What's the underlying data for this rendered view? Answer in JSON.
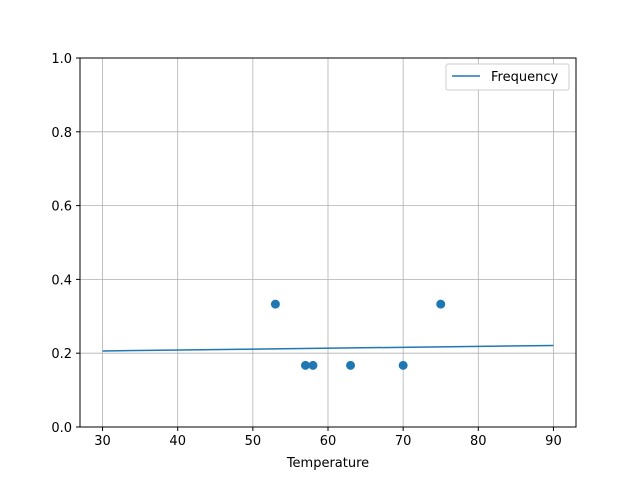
{
  "chart_data": {
    "type": "scatter",
    "title": "",
    "xlabel": "Temperature",
    "ylabel": "",
    "xlim": [
      27,
      93
    ],
    "ylim": [
      0,
      1.0
    ],
    "grid": true,
    "x_ticks": [
      30,
      40,
      50,
      60,
      70,
      80,
      90
    ],
    "y_ticks": [
      0.0,
      0.2,
      0.4,
      0.6,
      0.8,
      1.0
    ],
    "x_tick_labels": [
      "30",
      "40",
      "50",
      "60",
      "70",
      "80",
      "90"
    ],
    "y_tick_labels": [
      "0.0",
      "0.2",
      "0.4",
      "0.6",
      "0.8",
      "1.0"
    ],
    "legend_position": "upper-right",
    "color": "#1f77b4",
    "points": {
      "x": [
        53,
        57,
        58,
        63,
        70,
        75
      ],
      "y": [
        0.333,
        0.167,
        0.167,
        0.167,
        0.167,
        0.333
      ]
    },
    "line": {
      "name": "Frequency",
      "x": [
        30,
        90
      ],
      "y": [
        0.206,
        0.221
      ]
    }
  }
}
